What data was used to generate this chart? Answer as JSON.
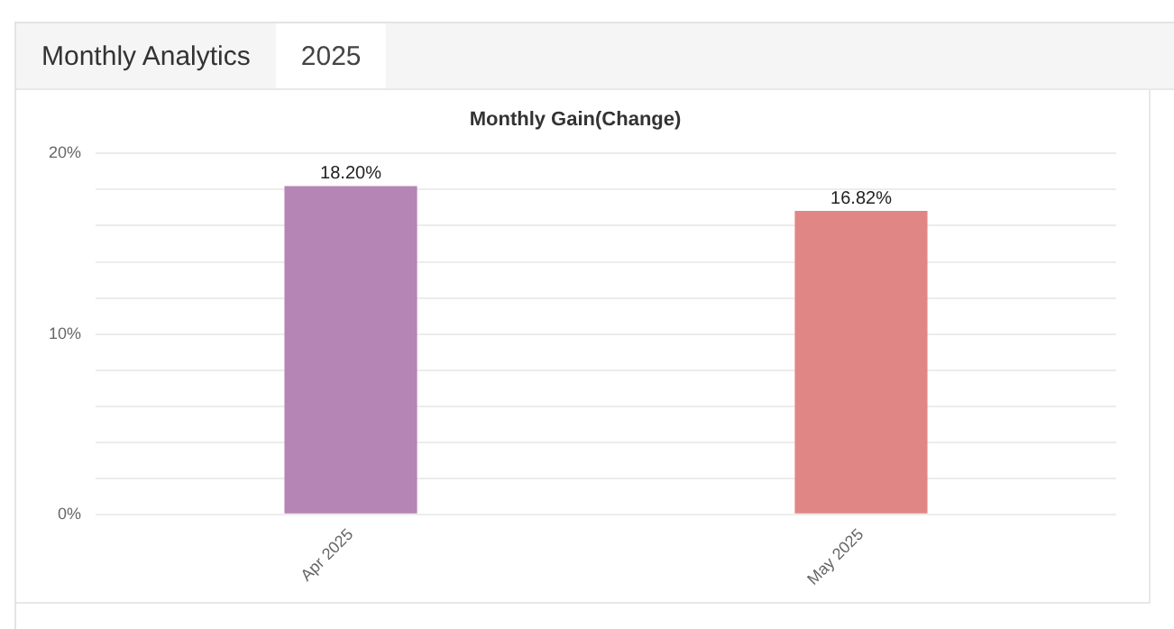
{
  "chart_data": {
    "type": "bar",
    "title": "Monthly Gain(Change)",
    "annotations": [
      "Monthly Analytics",
      "2025"
    ],
    "categories": [
      "Apr 2025",
      "May 2025"
    ],
    "values": [
      18.2,
      16.82
    ],
    "colors": [
      "#b585b5",
      "#e08785"
    ],
    "value_labels": [
      "18.20%",
      "16.82%"
    ],
    "ylim": [
      0,
      20
    ],
    "yticks": [
      {
        "value": 0,
        "label": "0%"
      },
      {
        "value": 2,
        "label": null
      },
      {
        "value": 4,
        "label": null
      },
      {
        "value": 6,
        "label": null
      },
      {
        "value": 8,
        "label": null
      },
      {
        "value": 10,
        "label": "10%"
      },
      {
        "value": 12,
        "label": null
      },
      {
        "value": 14,
        "label": null
      },
      {
        "value": 16,
        "label": null
      },
      {
        "value": 18,
        "label": null
      },
      {
        "value": 20,
        "label": "20%"
      }
    ],
    "grid": "y",
    "legend": false
  }
}
